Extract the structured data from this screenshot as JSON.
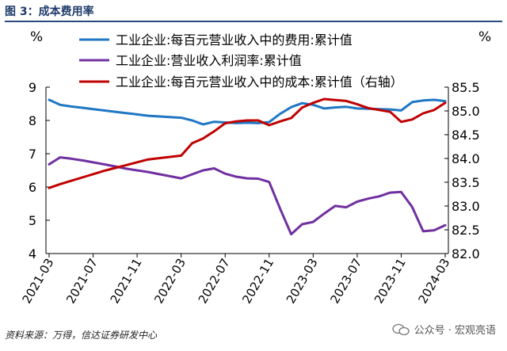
{
  "figure": {
    "title": "图 3：成本费用率",
    "source": "资料来源：万得，信达证券研发中心",
    "watermark": "公众号 · 宏观亮语"
  },
  "colors": {
    "expense": "#1f77c4",
    "profit": "#7030a0",
    "cost": "#c00000"
  },
  "chart_data": {
    "type": "line",
    "x": [
      "2021-03",
      "2021-04",
      "2021-05",
      "2021-06",
      "2021-07",
      "2021-08",
      "2021-09",
      "2021-10",
      "2021-11",
      "2021-12",
      "2022-01",
      "2022-02",
      "2022-03",
      "2022-04",
      "2022-05",
      "2022-06",
      "2022-07",
      "2022-08",
      "2022-09",
      "2022-10",
      "2022-11",
      "2022-12",
      "2023-01",
      "2023-02",
      "2023-03",
      "2023-04",
      "2023-05",
      "2023-06",
      "2023-07",
      "2023-08",
      "2023-09",
      "2023-10",
      "2023-11",
      "2023-12",
      "2024-01",
      "2024-02",
      "2024-03"
    ],
    "x_tick_labels": [
      "2021-03",
      "2021-07",
      "2021-11",
      "2022-03",
      "2022-07",
      "2022-11",
      "2023-03",
      "2023-07",
      "2023-11",
      "2024-03"
    ],
    "left_axis": {
      "unit": "%",
      "ylim": [
        4,
        9
      ],
      "ticks": [
        "4",
        "5",
        "6",
        "7",
        "8",
        "9"
      ]
    },
    "right_axis": {
      "unit": "%",
      "ylim": [
        82.0,
        85.5
      ],
      "ticks": [
        "82.0",
        "82.5",
        "83.0",
        "83.5",
        "84.0",
        "84.5",
        "85.0",
        "85.5"
      ]
    },
    "legend_position": "top",
    "grid": false,
    "series": [
      {
        "name": "工业企业:每百元营业收入中的费用:累计值",
        "axis": "left",
        "values": [
          8.62,
          8.47,
          8.42,
          8.38,
          8.34,
          8.3,
          8.26,
          8.22,
          8.18,
          8.14,
          null,
          null,
          8.08,
          8.0,
          7.88,
          7.96,
          7.94,
          7.92,
          7.93,
          7.92,
          7.95,
          8.2,
          8.4,
          8.52,
          8.47,
          8.36,
          8.39,
          8.41,
          8.36,
          8.35,
          8.34,
          8.33,
          8.3,
          8.55,
          8.6,
          8.62,
          8.58
        ]
      },
      {
        "name": "工业企业:营业收入利润率:累计值",
        "axis": "left",
        "values": [
          6.68,
          6.89,
          6.85,
          6.8,
          6.74,
          6.68,
          6.62,
          6.55,
          6.5,
          6.45,
          null,
          null,
          6.26,
          6.38,
          6.5,
          6.56,
          6.4,
          6.31,
          6.26,
          6.25,
          6.15,
          5.34,
          4.58,
          4.88,
          4.95,
          5.2,
          5.43,
          5.39,
          5.56,
          5.65,
          5.72,
          5.83,
          5.85,
          5.4,
          4.67,
          4.7,
          4.85
        ]
      },
      {
        "name": "工业企业:每百元营业收入中的成本:累计值（右轴）",
        "axis": "right",
        "values": [
          83.38,
          83.46,
          83.53,
          83.6,
          83.67,
          83.74,
          83.8,
          83.86,
          83.92,
          83.98,
          null,
          null,
          84.06,
          84.32,
          84.42,
          84.57,
          84.74,
          84.78,
          84.8,
          84.8,
          84.7,
          84.78,
          84.85,
          85.07,
          85.17,
          85.25,
          85.23,
          85.21,
          85.14,
          85.06,
          85.02,
          84.98,
          84.77,
          84.82,
          84.95,
          85.02,
          85.17
        ]
      }
    ]
  }
}
